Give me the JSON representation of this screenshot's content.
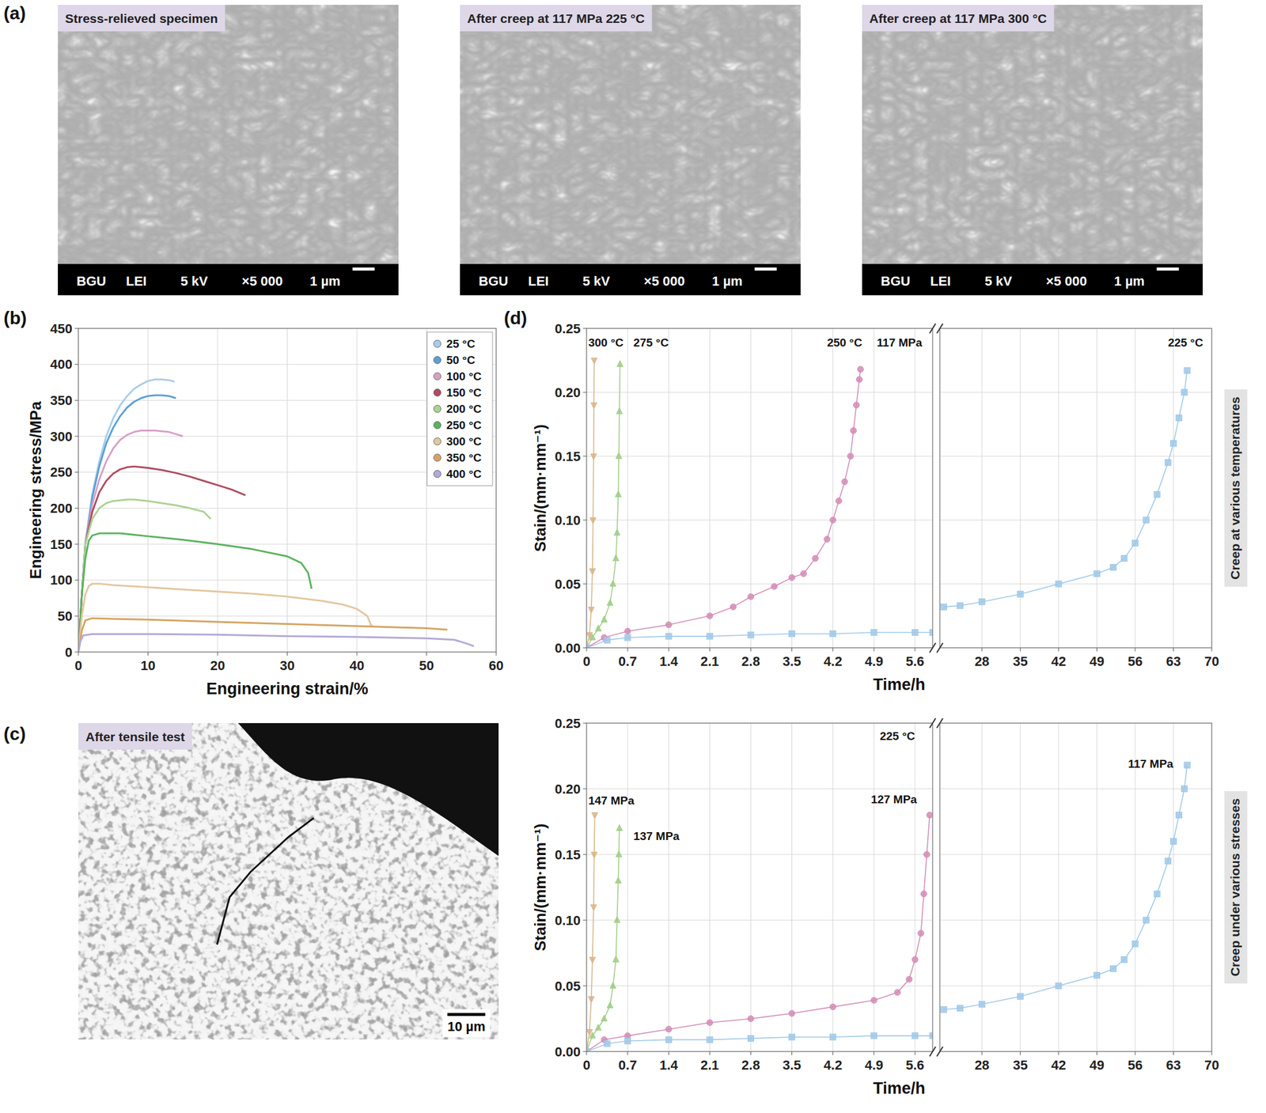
{
  "micrographs": {
    "label": "(a)",
    "images": [
      {
        "title": "Stress-relieved specimen",
        "footer": [
          "BGU",
          "LEI",
          "5 kV",
          "×5 000",
          "1 µm"
        ]
      },
      {
        "title": "After creep at 117 MPa 225 °C",
        "footer": [
          "BGU",
          "LEI",
          "5 kV",
          "×5 000",
          "1 µm"
        ]
      },
      {
        "title": "After creep at 117 MPa 300 °C",
        "footer": [
          "BGU",
          "LEI",
          "5 kV",
          "×5 000",
          "1 µm"
        ]
      }
    ]
  },
  "micrograph_c": {
    "label": "(c)",
    "title": "After tensile test",
    "scale": "10 µm"
  },
  "chart_data": [
    {
      "type": "line",
      "panel_label": "(b)",
      "x_label": "Engineering strain/%",
      "y_label": "Engineering stress/MPa",
      "xlim": [
        0,
        60
      ],
      "xticks": [
        0,
        10,
        20,
        30,
        40,
        50,
        60
      ],
      "ylim": [
        0,
        450
      ],
      "yticks": [
        0,
        50,
        100,
        150,
        200,
        250,
        300,
        350,
        400,
        450
      ],
      "grid": true,
      "legend": "top-right",
      "series": [
        {
          "name": "25 °C",
          "color": "#a7cdea",
          "x": [
            0,
            0.5,
            1,
            2,
            3,
            4,
            5,
            6,
            7,
            8,
            9,
            10,
            11,
            12,
            13,
            13.8
          ],
          "values": [
            0,
            80,
            150,
            220,
            265,
            300,
            325,
            343,
            356,
            366,
            372,
            377,
            379,
            379,
            378,
            376
          ]
        },
        {
          "name": "50 °C",
          "color": "#5b9fd4",
          "x": [
            0,
            0.5,
            1,
            2,
            3,
            4,
            5,
            6,
            7,
            8,
            9,
            10,
            11,
            12,
            13,
            14
          ],
          "values": [
            0,
            80,
            150,
            215,
            258,
            290,
            312,
            328,
            340,
            348,
            353,
            356,
            357,
            357,
            356,
            353
          ]
        },
        {
          "name": "100 °C",
          "color": "#d7a0c6",
          "x": [
            0,
            0.5,
            1,
            2,
            3,
            4,
            5,
            6,
            7,
            8,
            9,
            10,
            11,
            12,
            13,
            14,
            15
          ],
          "values": [
            0,
            80,
            150,
            205,
            240,
            265,
            283,
            295,
            302,
            306,
            308,
            308,
            308,
            307,
            306,
            303,
            300
          ]
        },
        {
          "name": "150 °C",
          "color": "#b04a5e",
          "x": [
            0,
            0.5,
            1,
            2,
            3,
            4,
            5,
            6,
            7,
            8,
            9,
            10,
            12,
            14,
            16,
            18,
            20,
            22,
            24
          ],
          "values": [
            0,
            80,
            150,
            195,
            222,
            238,
            248,
            254,
            257,
            258,
            257,
            256,
            253,
            249,
            244,
            238,
            232,
            226,
            218
          ]
        },
        {
          "name": "200 °C",
          "color": "#acd293",
          "x": [
            0,
            0.5,
            1,
            2,
            3,
            4,
            5,
            6,
            7,
            8,
            10,
            12,
            14,
            16,
            18,
            18.5,
            19
          ],
          "values": [
            0,
            80,
            150,
            185,
            200,
            207,
            210,
            211,
            212,
            212,
            210,
            207,
            204,
            200,
            195,
            190,
            185
          ]
        },
        {
          "name": "250 °C",
          "color": "#5bb35e",
          "x": [
            0,
            0.5,
            1,
            1.5,
            2,
            3,
            4,
            6,
            8,
            10,
            15,
            20,
            25,
            30,
            32,
            33,
            33.5
          ],
          "values": [
            0,
            80,
            130,
            155,
            162,
            165,
            165,
            165,
            163,
            161,
            156,
            150,
            143,
            133,
            124,
            110,
            88
          ]
        },
        {
          "name": "300 °C",
          "color": "#e3c7a0",
          "x": [
            0,
            0.5,
            1,
            1.5,
            2,
            3,
            5,
            10,
            15,
            20,
            25,
            30,
            35,
            38,
            40,
            41.5,
            42,
            42.3
          ],
          "values": [
            0,
            50,
            80,
            92,
            95,
            95,
            93,
            90,
            87,
            84,
            81,
            77,
            71,
            66,
            60,
            50,
            38,
            35
          ]
        },
        {
          "name": "350 °C",
          "color": "#d6a462",
          "x": [
            0,
            0.5,
            1,
            2,
            5,
            10,
            20,
            30,
            40,
            50,
            53
          ],
          "values": [
            0,
            30,
            44,
            47,
            46,
            45,
            42,
            39,
            36,
            33,
            31
          ]
        },
        {
          "name": "400 °C",
          "color": "#b3a9d8",
          "x": [
            0,
            0.3,
            0.7,
            2,
            10,
            20,
            30,
            40,
            50,
            54,
            56,
            56.8
          ],
          "values": [
            0,
            15,
            23,
            25,
            25,
            24,
            22,
            21,
            19,
            17,
            11,
            8
          ]
        }
      ]
    },
    {
      "type": "line",
      "panel_label": "(d)",
      "side_label": "Creep at various temperatures",
      "x_label": "Time/h",
      "y_label": "Stain/(mm·mm⁻¹)",
      "xlim": [
        0,
        70
      ],
      "x_break": [
        5.9,
        20.3
      ],
      "xticks": [
        0,
        0.7,
        1.4,
        2.1,
        2.8,
        3.5,
        4.2,
        4.9,
        5.6,
        28,
        35,
        42,
        49,
        56,
        63,
        70
      ],
      "ylim": [
        0,
        0.25
      ],
      "yticks": [
        {
          "value": 0,
          "label": "0.00"
        },
        0.05,
        {
          "value": 0.1,
          "label": "0.10"
        },
        0.15,
        {
          "value": 0.2,
          "label": "0.20"
        },
        0.25
      ],
      "grid": true,
      "annotations": [
        {
          "text": "300 °C",
          "x": 0.03,
          "y": 0.236
        },
        {
          "text": "275 °C",
          "x": 0.8,
          "y": 0.236
        },
        {
          "text": "250 °C",
          "x": 4.1,
          "y": 0.236
        },
        {
          "text": "117 MPa",
          "x": 4.95,
          "y": 0.236
        },
        {
          "text": "225 °C",
          "x": 62,
          "y": 0.236
        }
      ],
      "series": [
        {
          "color": "#d8b487",
          "marker": "triangle-down",
          "x": [
            0,
            0.05,
            0.08,
            0.1,
            0.11,
            0.12,
            0.125,
            0.13
          ],
          "values": [
            0,
            0.01,
            0.03,
            0.06,
            0.1,
            0.15,
            0.19,
            0.225
          ]
        },
        {
          "color": "#9fcd86",
          "marker": "triangle-up",
          "x": [
            0,
            0.1,
            0.2,
            0.3,
            0.4,
            0.45,
            0.5,
            0.52,
            0.54,
            0.55,
            0.56,
            0.57
          ],
          "values": [
            0,
            0.008,
            0.015,
            0.022,
            0.035,
            0.05,
            0.07,
            0.09,
            0.12,
            0.15,
            0.185,
            0.222
          ]
        },
        {
          "color": "#d48cb6",
          "marker": "circle",
          "x": [
            0,
            0.3,
            0.7,
            1.4,
            2.1,
            2.5,
            2.8,
            3.2,
            3.5,
            3.7,
            3.9,
            4.1,
            4.2,
            4.3,
            4.4,
            4.5,
            4.55,
            4.6,
            4.65,
            4.67
          ],
          "values": [
            0,
            0.008,
            0.013,
            0.018,
            0.025,
            0.032,
            0.04,
            0.048,
            0.055,
            0.058,
            0.07,
            0.085,
            0.1,
            0.115,
            0.13,
            0.15,
            0.17,
            0.19,
            0.21,
            0.218
          ]
        },
        {
          "color": "#9fc8e8",
          "marker": "square",
          "x": [
            0,
            0.35,
            0.7,
            1.4,
            2.1,
            2.8,
            3.5,
            4.2,
            4.9,
            5.6,
            5.9,
            null,
            21,
            24,
            28,
            35,
            42,
            49,
            52,
            54,
            56,
            58,
            60,
            62,
            63,
            64,
            65,
            65.5
          ],
          "values": [
            0,
            0.006,
            0.008,
            0.009,
            0.009,
            0.01,
            0.011,
            0.011,
            0.012,
            0.012,
            0.012,
            null,
            0.032,
            0.033,
            0.036,
            0.042,
            0.05,
            0.058,
            0.063,
            0.07,
            0.082,
            0.1,
            0.12,
            0.145,
            0.16,
            0.18,
            0.2,
            0.217
          ]
        }
      ]
    },
    {
      "type": "line",
      "side_label": "Creep under various stresses",
      "x_label": "Time/h",
      "y_label": "Stain/(mm·mm⁻¹)",
      "xlim": [
        0,
        70
      ],
      "x_break": [
        5.9,
        20.3
      ],
      "xticks": [
        0,
        0.7,
        1.4,
        2.1,
        2.8,
        3.5,
        4.2,
        4.9,
        5.6,
        28,
        35,
        42,
        49,
        56,
        63,
        70
      ],
      "ylim": [
        0,
        0.25
      ],
      "yticks": [
        {
          "value": 0,
          "label": "0.00"
        },
        0.05,
        {
          "value": 0.1,
          "label": "0.10"
        },
        0.15,
        {
          "value": 0.2,
          "label": "0.20"
        },
        0.25
      ],
      "grid": true,
      "annotations": [
        {
          "text": "225 °C",
          "x": 5.0,
          "y": 0.237
        },
        {
          "text": "147 MPa",
          "x": 0.03,
          "y": 0.188
        },
        {
          "text": "137 MPa",
          "x": 0.8,
          "y": 0.161
        },
        {
          "text": "127 MPa",
          "x": 4.85,
          "y": 0.189
        },
        {
          "text": "117 MPa",
          "x": 54.7,
          "y": 0.216
        }
      ],
      "series": [
        {
          "color": "#d8b487",
          "marker": "triangle-down",
          "x": [
            0,
            0.05,
            0.08,
            0.1,
            0.12,
            0.13,
            0.14
          ],
          "values": [
            0,
            0.015,
            0.04,
            0.07,
            0.11,
            0.15,
            0.18
          ]
        },
        {
          "color": "#9fcd86",
          "marker": "triangle-up",
          "x": [
            0,
            0.1,
            0.2,
            0.3,
            0.4,
            0.45,
            0.5,
            0.52,
            0.54,
            0.55,
            0.56
          ],
          "values": [
            0,
            0.012,
            0.018,
            0.025,
            0.035,
            0.05,
            0.07,
            0.1,
            0.13,
            0.15,
            0.17
          ]
        },
        {
          "color": "#d48cb6",
          "marker": "circle",
          "x": [
            0,
            0.3,
            0.7,
            1.4,
            2.1,
            2.8,
            3.5,
            4.2,
            4.9,
            5.3,
            5.5,
            5.6,
            5.7,
            5.75,
            5.8,
            5.85
          ],
          "values": [
            0,
            0.009,
            0.012,
            0.017,
            0.022,
            0.025,
            0.029,
            0.034,
            0.039,
            0.045,
            0.055,
            0.07,
            0.09,
            0.12,
            0.15,
            0.18
          ]
        },
        {
          "color": "#9fc8e8",
          "marker": "square",
          "x": [
            0,
            0.35,
            0.7,
            1.4,
            2.1,
            2.8,
            3.5,
            4.2,
            4.9,
            5.6,
            5.9,
            null,
            21,
            24,
            28,
            35,
            42,
            49,
            52,
            54,
            56,
            58,
            60,
            62,
            63,
            64,
            65,
            65.5
          ],
          "values": [
            0,
            0.006,
            0.008,
            0.009,
            0.009,
            0.01,
            0.011,
            0.011,
            0.012,
            0.012,
            0.012,
            null,
            0.032,
            0.033,
            0.036,
            0.042,
            0.05,
            0.058,
            0.063,
            0.07,
            0.082,
            0.1,
            0.12,
            0.145,
            0.16,
            0.18,
            0.2,
            0.218
          ]
        }
      ]
    }
  ]
}
